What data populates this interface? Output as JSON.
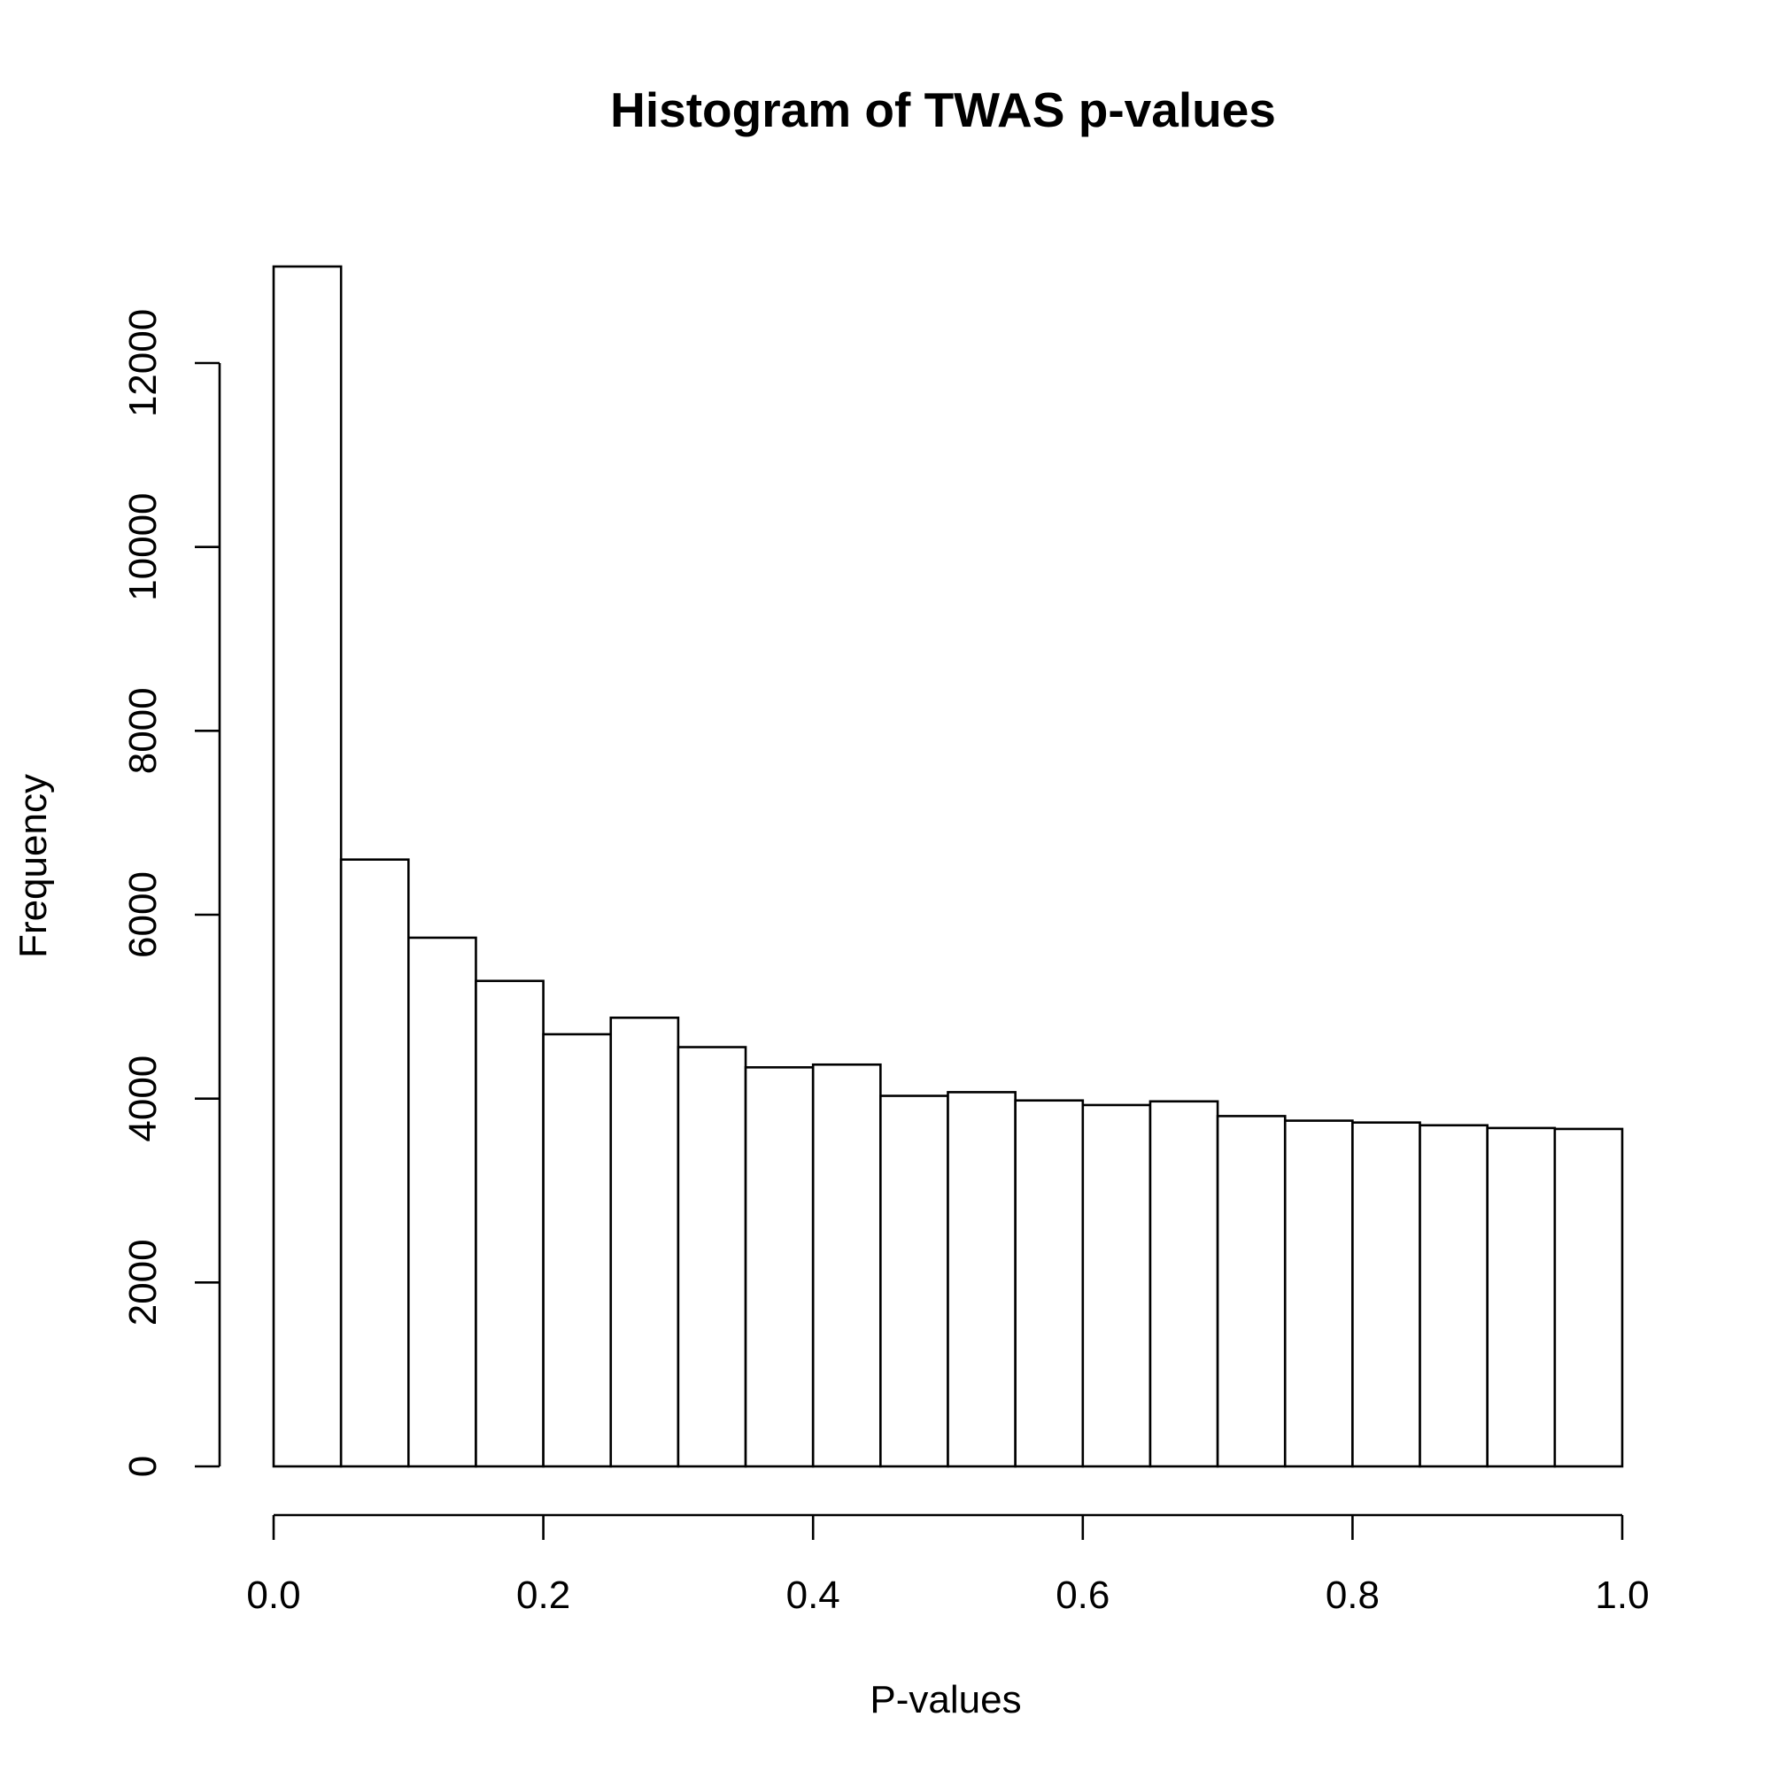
{
  "chart_data": {
    "type": "bar",
    "title": "Histogram of TWAS p-values",
    "xlabel": "P-values",
    "ylabel": "Frequency",
    "bin_edges": [
      0.0,
      0.05,
      0.1,
      0.15,
      0.2,
      0.25,
      0.3,
      0.35,
      0.4,
      0.45,
      0.5,
      0.55,
      0.6,
      0.65,
      0.7,
      0.75,
      0.8,
      0.85,
      0.9,
      0.95,
      1.0
    ],
    "values": [
      13050,
      6600,
      5750,
      5280,
      4700,
      4880,
      4560,
      4340,
      4370,
      4030,
      4070,
      3980,
      3930,
      3970,
      3810,
      3760,
      3740,
      3710,
      3680,
      3670
    ],
    "xlim": [
      0,
      1
    ],
    "ylim": [
      0,
      12000
    ],
    "x_ticks": [
      0.0,
      0.2,
      0.4,
      0.6,
      0.8,
      1.0
    ],
    "x_tick_labels": [
      "0.0",
      "0.2",
      "0.4",
      "0.6",
      "0.8",
      "1.0"
    ],
    "y_ticks": [
      0,
      2000,
      4000,
      6000,
      8000,
      10000,
      12000
    ],
    "y_tick_labels": [
      "0",
      "2000",
      "4000",
      "6000",
      "8000",
      "10000",
      "12000"
    ],
    "grid": false,
    "bar_fill": "#ffffff",
    "bar_stroke": "#000000"
  }
}
